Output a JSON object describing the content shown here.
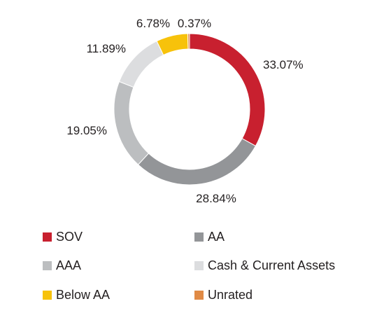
{
  "chart_data": {
    "type": "pie",
    "title": "",
    "categories": [
      "SOV",
      "AA",
      "AAA",
      "Cash & Current Assets",
      "Below AA",
      "Unrated"
    ],
    "values": [
      33.07,
      28.84,
      19.05,
      11.89,
      6.78,
      0.37
    ],
    "labels": [
      "33.07%",
      "28.84%",
      "19.05%",
      "11.89%",
      "6.78%",
      "0.37%"
    ],
    "colors": [
      "#c8202f",
      "#939598",
      "#bcbec0",
      "#dcdddf",
      "#f7c20b",
      "#e08a45"
    ],
    "legend_position": "bottom"
  }
}
